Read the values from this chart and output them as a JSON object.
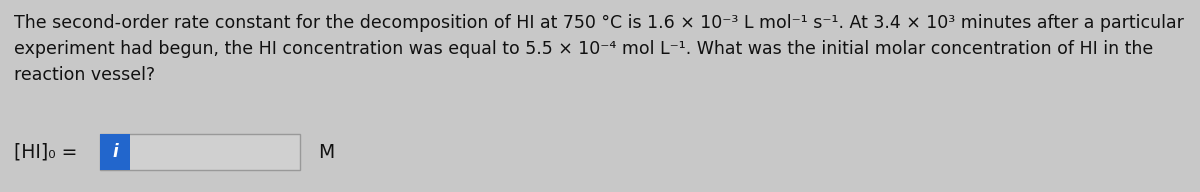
{
  "background_color": "#c8c8c8",
  "text_line1": "The second-order rate constant for the decomposition of HI at 750 °C is 1.6 × 10⁻³ L mol⁻¹ s⁻¹. At 3.4 × 10³ minutes after a particular",
  "text_line2": "experiment had begun, the HI concentration was equal to 5.5 × 10⁻⁴ mol L⁻¹. What was the initial molar concentration of HI in the",
  "text_line3": "reaction vessel?",
  "label_text": "[HI]₀ =",
  "unit_text": "M",
  "text_color": "#111111",
  "text_fontsize": 12.5,
  "label_fontsize": 13.5,
  "box_fill_color": "#d0d0d0",
  "box_edge_color": "#999999",
  "icon_color": "#2266cc",
  "icon_text_color": "#ffffff"
}
